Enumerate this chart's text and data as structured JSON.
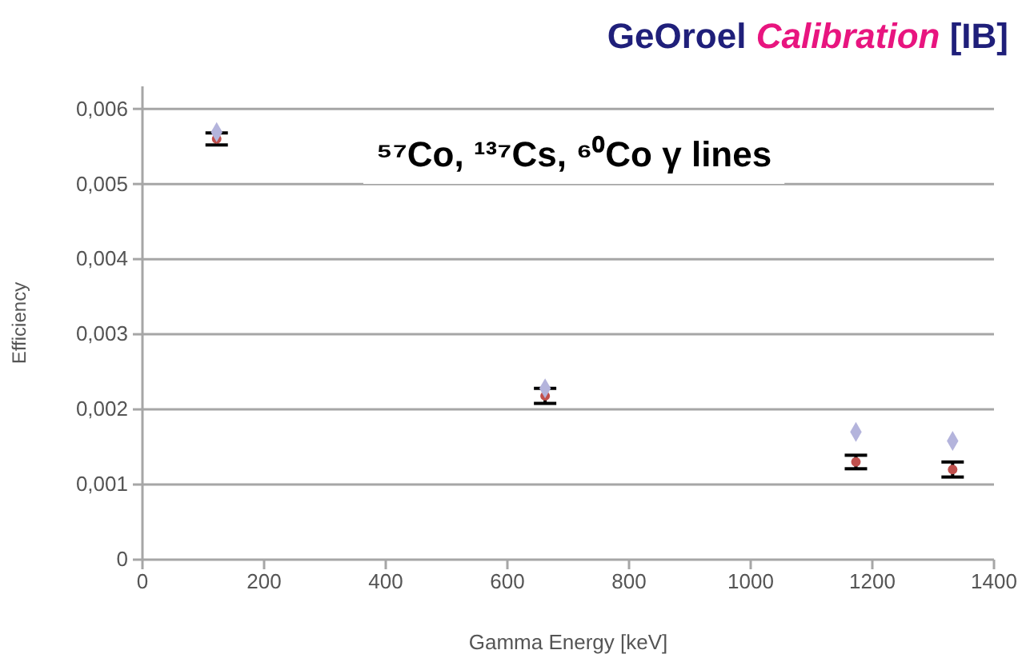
{
  "chart_data": {
    "type": "scatter",
    "title": "GeOroel Calibration [IB]",
    "xlabel": "Gamma Energy [keV]",
    "ylabel": "Efficiency",
    "annotations": [
      "⁵⁷Co, ¹³⁷Cs, ⁶⁰Co γ lines"
    ],
    "x": [
      122,
      662,
      1173,
      1332
    ],
    "series": [
      {
        "color": "#b4b4dc",
        "marker": "diamond",
        "values": [
          0.00569,
          0.00228,
          0.0017,
          0.00158
        ]
      },
      {
        "color": "#c0504d",
        "marker": "circle",
        "values": [
          0.0056,
          0.00218,
          0.0013,
          0.0012
        ],
        "errors": [
          8e-05,
          0.0001,
          9e-05,
          0.0001
        ]
      }
    ],
    "xlim": [
      0,
      1400
    ],
    "xticks": [
      0,
      200,
      400,
      600,
      800,
      1000,
      1200,
      1400
    ],
    "ylim": [
      0,
      0.0063
    ],
    "yticks": [
      {
        "value": 0,
        "label": "0"
      },
      {
        "value": 0.001,
        "label": "0,001"
      },
      {
        "value": 0.002,
        "label": "0,002"
      },
      {
        "value": 0.003,
        "label": "0,003"
      },
      {
        "value": 0.004,
        "label": "0,004"
      },
      {
        "value": 0.005,
        "label": "0,005"
      },
      {
        "value": 0.006,
        "label": "0,006"
      }
    ],
    "grid": "y"
  }
}
